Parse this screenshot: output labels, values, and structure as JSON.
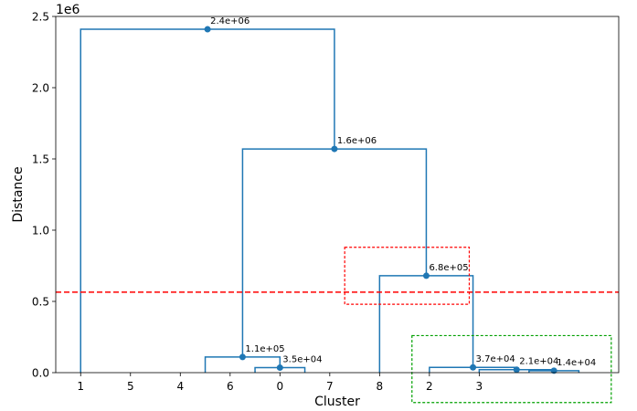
{
  "chart_data": {
    "type": "dendrogram",
    "xlabel": "Cluster",
    "ylabel": "Distance",
    "y_multiplier_label": "1e6",
    "ylim": [
      0,
      2500000
    ],
    "yticks": [
      {
        "value": 0,
        "label": "0.0"
      },
      {
        "value": 500000,
        "label": "0.5"
      },
      {
        "value": 1000000,
        "label": "1.0"
      },
      {
        "value": 1500000,
        "label": "1.5"
      },
      {
        "value": 2000000,
        "label": "2.0"
      },
      {
        "value": 2500000,
        "label": "2.5"
      }
    ],
    "leaves": [
      "1",
      "5",
      "4",
      "6",
      "0",
      "7",
      "8",
      "2",
      "3"
    ],
    "links": [
      {
        "left_x": 4.5,
        "right_x": 5.5,
        "left_h": 0,
        "right_h": 0,
        "height": 35000,
        "label": "3.5e+04"
      },
      {
        "left_x": 3.5,
        "right_x": 5.0,
        "left_h": 0,
        "right_h": 35000,
        "height": 110000,
        "label": "1.1e+05"
      },
      {
        "left_x": 10.0,
        "right_x": 11.0,
        "left_h": 0,
        "right_h": 0,
        "height": 14000,
        "label": "1.4e+04"
      },
      {
        "left_x": 9.0,
        "right_x": 10.5,
        "left_h": 0,
        "right_h": 14000,
        "height": 21000,
        "label": "2.1e+04"
      },
      {
        "left_x": 8.0,
        "right_x": 9.75,
        "left_h": 0,
        "right_h": 21000,
        "height": 37000,
        "label": "3.7e+04"
      },
      {
        "left_x": 7.0,
        "right_x": 8.875,
        "left_h": 0,
        "right_h": 37000,
        "height": 680000,
        "label": "6.8e+05"
      },
      {
        "left_x": 4.25,
        "right_x": 7.9375,
        "left_h": 110000,
        "right_h": 680000,
        "height": 1570000,
        "label": "1.6e+06"
      },
      {
        "left_x": 1.0,
        "right_x": 6.09375,
        "left_h": 0,
        "right_h": 1570000,
        "height": 2410000,
        "label": "2.4e+06"
      }
    ],
    "threshold": 565000,
    "colors": {
      "link": "#1f77b4",
      "threshold": "#ff0000",
      "red_box": "#ff0000",
      "green_box": "#00a000"
    },
    "highlight_boxes": [
      {
        "color": "red",
        "x_range": [
          6.3,
          8.8
        ],
        "y_range": [
          480000,
          880000
        ]
      },
      {
        "color": "green",
        "x_range": [
          7.65,
          11.65
        ],
        "y_range": [
          -210000,
          260000
        ]
      }
    ],
    "grid": false,
    "legend": "none"
  }
}
